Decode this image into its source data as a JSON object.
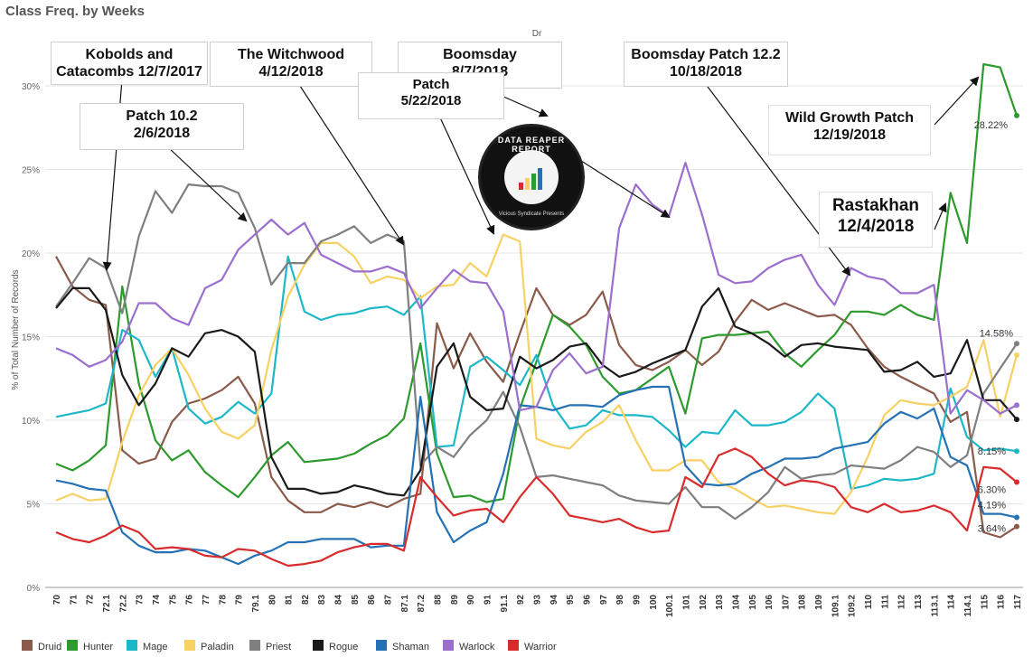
{
  "title": "Class Freq. by Weeks",
  "header_filter": "Dr",
  "chart_data": {
    "type": "line",
    "title": "Class Freq. by Weeks",
    "ylabel": "% of Total Number of Records",
    "xlabel": "",
    "ylim": [
      0,
      32.5
    ],
    "yticks": [
      "0%",
      "5%",
      "10%",
      "15%",
      "20%",
      "25%",
      "30%"
    ],
    "grid": true,
    "legend_position": "bottom",
    "categories": [
      "70",
      "71",
      "72",
      "72.1",
      "72.2",
      "73",
      "74",
      "75",
      "76",
      "77",
      "78",
      "79",
      "79.1",
      "80",
      "81",
      "82",
      "83",
      "84",
      "85",
      "86",
      "87",
      "87.1",
      "87.2",
      "88",
      "89",
      "90",
      "91",
      "91.1",
      "92",
      "93",
      "94",
      "95",
      "96",
      "97",
      "98",
      "99",
      "100",
      "100.1",
      "101",
      "102",
      "103",
      "104",
      "105",
      "106",
      "107",
      "108",
      "109",
      "109.1",
      "109.2",
      "110",
      "111",
      "112",
      "113",
      "113.1",
      "114",
      "114.1",
      "115",
      "116",
      "117"
    ],
    "series": [
      {
        "name": "Druid",
        "color": "#8b5a4a",
        "values": [
          19.8,
          18.0,
          17.2,
          16.9,
          8.2,
          7.4,
          7.7,
          9.9,
          11.0,
          11.3,
          11.8,
          12.6,
          11.0,
          6.6,
          5.2,
          4.5,
          4.5,
          5.0,
          4.8,
          5.1,
          4.8,
          5.3,
          5.6,
          15.8,
          13.1,
          15.2,
          13.5,
          12.3,
          15.2,
          17.9,
          16.3,
          15.7,
          16.3,
          17.7,
          14.5,
          13.3,
          13.0,
          13.5,
          14.2,
          13.3,
          14.1,
          15.9,
          17.2,
          16.6,
          17.0,
          16.6,
          16.2,
          16.3,
          15.7,
          14.3,
          13.2,
          12.6,
          12.1,
          11.6,
          9.9,
          10.5,
          3.3,
          3.0,
          3.64
        ]
      },
      {
        "name": "Hunter",
        "color": "#2d9a2d",
        "values": [
          7.4,
          7.0,
          7.6,
          8.5,
          18.0,
          12.2,
          8.8,
          7.6,
          8.2,
          6.9,
          6.1,
          5.4,
          6.6,
          7.9,
          8.7,
          7.5,
          7.6,
          7.7,
          8.0,
          8.6,
          9.1,
          10.1,
          14.6,
          8.0,
          5.4,
          5.5,
          5.1,
          5.3,
          10.7,
          13.5,
          16.3,
          15.6,
          14.5,
          12.6,
          11.6,
          11.8,
          12.5,
          13.2,
          10.4,
          14.9,
          15.1,
          15.1,
          15.2,
          15.3,
          14.0,
          13.2,
          14.2,
          15.1,
          16.5,
          16.5,
          16.3,
          16.9,
          16.3,
          16.0,
          23.6,
          20.6,
          31.3,
          31.1,
          28.22
        ]
      },
      {
        "name": "Mage",
        "color": "#1cb8c8",
        "values": [
          10.2,
          10.4,
          10.6,
          11.0,
          15.4,
          14.8,
          12.6,
          14.3,
          10.7,
          9.8,
          10.2,
          11.1,
          10.4,
          11.6,
          19.8,
          16.5,
          16.0,
          16.3,
          16.4,
          16.7,
          16.8,
          16.3,
          17.4,
          8.4,
          8.5,
          13.2,
          13.8,
          13.0,
          12.1,
          13.9,
          10.9,
          9.5,
          9.7,
          10.6,
          10.3,
          10.3,
          10.2,
          9.4,
          8.4,
          9.3,
          9.2,
          10.6,
          9.7,
          9.7,
          9.9,
          10.5,
          11.6,
          10.7,
          5.9,
          6.1,
          6.5,
          6.4,
          6.5,
          6.8,
          11.9,
          9.0,
          8.2,
          8.3,
          8.15
        ]
      },
      {
        "name": "Paladin",
        "color": "#f7d163",
        "values": [
          5.2,
          5.6,
          5.2,
          5.3,
          8.7,
          11.5,
          13.3,
          14.3,
          12.7,
          10.7,
          9.3,
          8.9,
          9.7,
          14.2,
          17.4,
          19.3,
          20.6,
          20.6,
          19.8,
          18.2,
          18.6,
          18.4,
          17.3,
          18.0,
          18.1,
          19.4,
          18.6,
          21.1,
          20.7,
          8.9,
          8.5,
          8.3,
          9.3,
          9.9,
          10.9,
          8.8,
          7.0,
          7.0,
          7.6,
          7.6,
          6.3,
          5.9,
          5.3,
          4.8,
          4.9,
          4.7,
          4.5,
          4.4,
          5.7,
          7.8,
          10.3,
          11.2,
          11.0,
          10.9,
          11.4,
          12.0,
          14.8,
          10.2,
          13.9
        ]
      },
      {
        "name": "Priest",
        "color": "#7f7f7f",
        "values": [
          16.8,
          18.2,
          19.7,
          19.1,
          16.4,
          21.0,
          23.7,
          22.4,
          24.1,
          24.0,
          24.0,
          23.6,
          21.5,
          18.1,
          19.4,
          19.4,
          20.7,
          21.1,
          21.6,
          20.6,
          21.1,
          20.7,
          7.3,
          8.4,
          7.8,
          9.1,
          10.0,
          11.7,
          9.6,
          6.6,
          6.7,
          6.5,
          6.3,
          6.1,
          5.5,
          5.2,
          5.1,
          5.0,
          6.0,
          4.8,
          4.8,
          4.1,
          4.8,
          5.7,
          7.2,
          6.5,
          6.7,
          6.8,
          7.3,
          7.2,
          7.1,
          7.6,
          8.4,
          8.1,
          7.2,
          7.9,
          11.6,
          13.1,
          14.58
        ]
      },
      {
        "name": "Rogue",
        "color": "#1a1a1a",
        "values": [
          16.7,
          17.9,
          17.9,
          16.6,
          12.7,
          10.9,
          12.2,
          14.3,
          13.8,
          15.2,
          15.4,
          15.0,
          14.1,
          7.8,
          5.9,
          5.9,
          5.6,
          5.7,
          6.1,
          5.9,
          5.6,
          5.5,
          7.0,
          13.2,
          14.6,
          11.4,
          10.6,
          10.7,
          13.8,
          13.1,
          13.6,
          14.4,
          14.6,
          13.3,
          12.6,
          12.9,
          13.4,
          13.8,
          14.2,
          16.8,
          17.9,
          15.6,
          15.2,
          14.6,
          13.8,
          14.5,
          14.6,
          14.4,
          14.3,
          14.2,
          12.9,
          13.0,
          13.5,
          12.6,
          12.8,
          14.8,
          11.2,
          11.2,
          10.05
        ]
      },
      {
        "name": "Shaman",
        "color": "#2472b5",
        "values": [
          6.4,
          6.2,
          5.9,
          5.8,
          3.3,
          2.5,
          2.1,
          2.1,
          2.3,
          2.2,
          1.8,
          1.4,
          1.9,
          2.2,
          2.7,
          2.7,
          2.9,
          2.9,
          2.9,
          2.4,
          2.5,
          2.5,
          11.4,
          4.5,
          2.7,
          3.4,
          3.9,
          6.8,
          10.9,
          10.8,
          10.6,
          10.9,
          10.9,
          10.8,
          11.5,
          11.8,
          12.0,
          12.0,
          7.3,
          6.2,
          6.1,
          6.2,
          6.8,
          7.2,
          7.7,
          7.7,
          7.8,
          8.3,
          8.5,
          8.7,
          9.8,
          10.5,
          10.1,
          10.7,
          7.8,
          7.3,
          4.4,
          4.4,
          4.19
        ]
      },
      {
        "name": "Warlock",
        "color": "#9b6fce",
        "values": [
          14.3,
          13.9,
          13.2,
          13.6,
          14.7,
          17.0,
          17.0,
          16.1,
          15.7,
          17.9,
          18.4,
          20.2,
          21.1,
          22.0,
          21.1,
          21.8,
          19.9,
          19.4,
          18.9,
          18.9,
          19.2,
          18.8,
          16.7,
          17.9,
          19.0,
          18.3,
          18.2,
          16.5,
          10.6,
          10.8,
          13.0,
          14.0,
          12.8,
          13.2,
          21.5,
          24.1,
          22.9,
          22.2,
          25.4,
          22.3,
          18.7,
          18.2,
          18.3,
          19.1,
          19.6,
          19.9,
          18.1,
          16.9,
          19.1,
          18.6,
          18.4,
          17.6,
          17.6,
          18.1,
          10.4,
          11.8,
          11.2,
          10.4,
          10.9
        ]
      },
      {
        "name": "Warrior",
        "color": "#d92b2b",
        "values": [
          3.3,
          2.9,
          2.7,
          3.1,
          3.7,
          3.3,
          2.3,
          2.4,
          2.3,
          1.9,
          1.8,
          2.3,
          2.2,
          1.7,
          1.3,
          1.4,
          1.6,
          2.1,
          2.4,
          2.6,
          2.6,
          2.2,
          6.6,
          5.4,
          4.3,
          4.6,
          4.7,
          3.9,
          5.4,
          6.6,
          5.6,
          4.3,
          4.1,
          3.9,
          4.1,
          3.6,
          3.3,
          3.4,
          6.6,
          6.0,
          7.9,
          8.3,
          7.8,
          6.8,
          6.1,
          6.4,
          6.3,
          6.0,
          4.8,
          4.5,
          5.0,
          4.5,
          4.6,
          4.9,
          4.5,
          3.4,
          7.2,
          7.1,
          6.3
        ]
      }
    ],
    "end_labels": [
      {
        "series": "Hunter",
        "text": "28.22%"
      },
      {
        "series": "Priest",
        "text": "14.58%"
      },
      {
        "series": "Mage",
        "text": "8.15%"
      },
      {
        "series": "Warrior",
        "text": "6.30%"
      },
      {
        "series": "Shaman",
        "text": "4.19%"
      },
      {
        "series": "Druid",
        "text": "3.64%"
      }
    ],
    "annotations": [
      {
        "id": "kobolds",
        "text": "Kobolds and\nCatacombs 12/7/2017"
      },
      {
        "id": "witchwood",
        "text": "The Witchwood\n4/12/2018"
      },
      {
        "id": "boomsday",
        "text": "Boomsday\n8/7/2018"
      },
      {
        "id": "boomsday-patch",
        "text": "Boomsday Patch 12.2\n10/18/2018"
      },
      {
        "id": "patch-102",
        "text": "Patch 10.2\n2/6/2018"
      },
      {
        "id": "patch-0522",
        "text": "Patch\n5/22/2018"
      },
      {
        "id": "wild-growth",
        "text": "Wild Growth Patch\n12/19/2018"
      },
      {
        "id": "rastakhan",
        "text": "Rastakhan\n12/4/2018"
      }
    ]
  },
  "logo": {
    "top_text": "DATA REAPER REPORT",
    "bottom_text": "Vicious Syndicate Presents"
  }
}
